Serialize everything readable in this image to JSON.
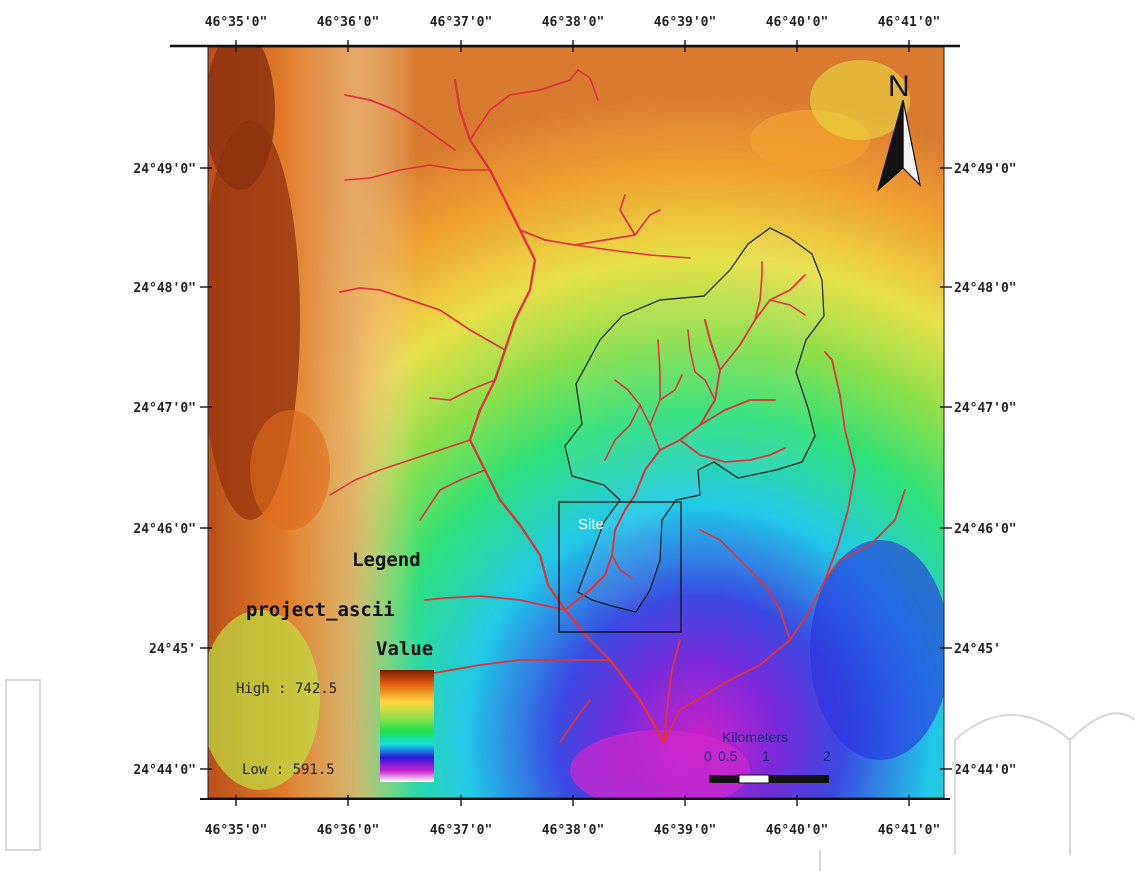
{
  "map": {
    "north_label": "N",
    "site_label": "Site",
    "lon_ticks": [
      "46°35'0\"",
      "46°36'0\"",
      "46°37'0\"",
      "46°38'0\"",
      "46°39'0\"",
      "46°40'0\"",
      "46°41'0\""
    ],
    "lat_ticks": [
      "24°49'0\"",
      "24°48'0\"",
      "24°47'0\"",
      "24°46'0\"",
      "24°45'",
      "24°44'0\""
    ]
  },
  "legend": {
    "title": "Legend",
    "layer": "project_ascii",
    "field": "Value",
    "high": "High : 742.5",
    "low": "Low : 591.5"
  },
  "scalebar": {
    "units": "Kilometers",
    "labels": [
      "0",
      "0.5",
      "1",
      "2"
    ]
  },
  "colors": {
    "river": "#e0343c",
    "watershed_outline": "#1a1a1a",
    "ramp": [
      "#7a2a00",
      "#d2691e",
      "#ffd23a",
      "#9be04a",
      "#1adf4a",
      "#18e0e0",
      "#2a1ad8",
      "#cc22cc",
      "#ffffff"
    ]
  }
}
